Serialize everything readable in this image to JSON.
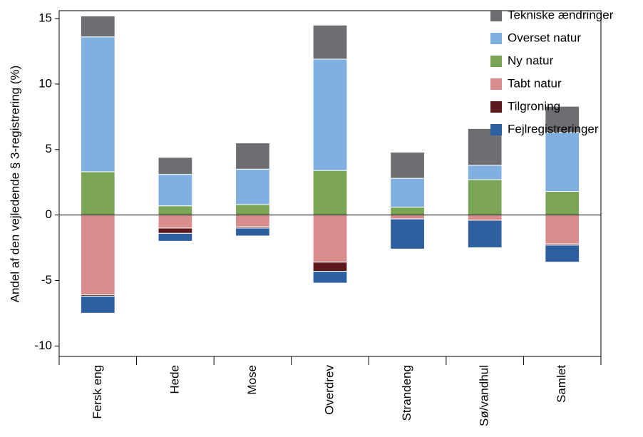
{
  "chart_data": {
    "type": "stacked-bar",
    "y_label": "Andel af den vejledende § 3-registrering (%)",
    "categories": [
      "Fersk eng",
      "Hede",
      "Mose",
      "Overdrev",
      "Strandeng",
      "Sø/vandhul",
      "Samlet"
    ],
    "series": [
      {
        "name": "Tekniske ændringer",
        "color": "#6d6e71",
        "values": [
          1.6,
          1.3,
          2.0,
          2.6,
          2.0,
          2.8,
          2.0
        ]
      },
      {
        "name": "Overset natur",
        "color": "#7fb0e0",
        "values": [
          10.3,
          2.4,
          2.7,
          8.5,
          2.2,
          1.1,
          4.5
        ]
      },
      {
        "name": "Ny natur",
        "color": "#7aa556",
        "values": [
          3.3,
          0.7,
          0.8,
          3.4,
          0.6,
          2.7,
          1.8
        ]
      },
      {
        "name": "Tabt natur",
        "color": "#d98c8c",
        "values": [
          -6.1,
          -1.0,
          -0.9,
          -3.6,
          -0.3,
          -0.4,
          -2.2
        ]
      },
      {
        "name": "Tilgroning",
        "color": "#5c1a1f",
        "values": [
          -0.1,
          -0.4,
          -0.1,
          -0.7,
          0,
          0,
          -0.1
        ]
      },
      {
        "name": "Fejlregistreringer",
        "color": "#2e5f9e",
        "values": [
          -1.3,
          -0.6,
          -0.6,
          -0.9,
          -2.3,
          -2.1,
          -1.3
        ]
      }
    ],
    "ylim": [
      -10.8,
      15.6
    ],
    "yticks": [
      -10,
      -5,
      0,
      5,
      10,
      15
    ],
    "legend": "right"
  }
}
